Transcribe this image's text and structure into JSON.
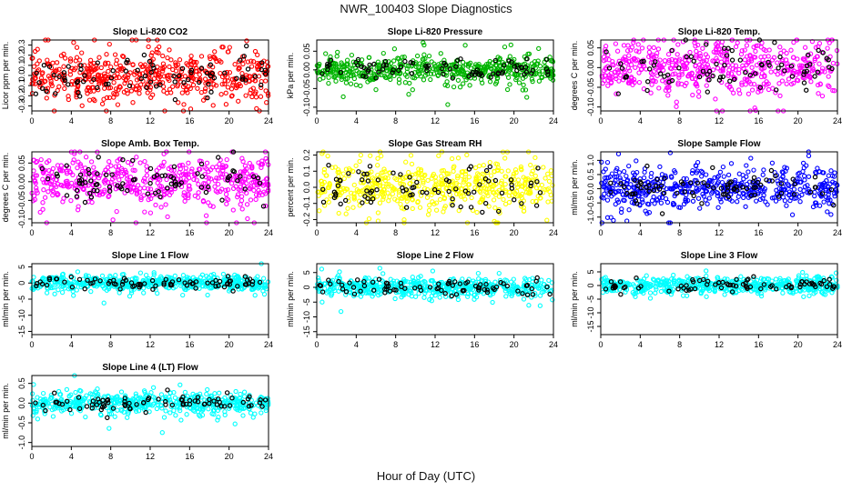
{
  "title": "NWR_100403  Slope Diagnostics",
  "xlabel": "Hour of Day (UTC)",
  "colors": {
    "background": "#ffffff",
    "axis": "#000000",
    "highlight_points": "#000000"
  },
  "chart_data": [
    {
      "type": "scatter",
      "title": "Slope Li-820 CO2",
      "ylabel": "Licor ppm per min.",
      "color": "#ff0000",
      "xlim": [
        0,
        24
      ],
      "xticks": [
        0,
        4,
        8,
        12,
        16,
        20,
        24
      ],
      "ylim": [
        -0.35,
        0.35
      ],
      "yticks": [
        -0.3,
        -0.2,
        -0.1,
        0.0,
        0.1,
        0.2,
        0.3
      ],
      "ytick_labels": [
        "-0.3",
        "-0.2",
        "-0.1",
        "0.0",
        "0.1",
        "0.2",
        "0.3"
      ],
      "spread": 0.13,
      "n_points": 520,
      "n_black": 80,
      "seed": 11
    },
    {
      "type": "scatter",
      "title": "Slope Li-820 Pressure",
      "ylabel": "kPa per min.",
      "color": "#00b400",
      "xlim": [
        0,
        24
      ],
      "xticks": [
        0,
        4,
        8,
        12,
        16,
        20,
        24
      ],
      "ylim": [
        -0.11,
        0.08
      ],
      "yticks": [
        -0.1,
        -0.05,
        0.0,
        0.05
      ],
      "ytick_labels": [
        "-0.10",
        "-0.05",
        "0.00",
        "0.05"
      ],
      "spread": 0.018,
      "n_points": 520,
      "n_black": 80,
      "seed": 23
    },
    {
      "type": "scatter",
      "title": "Slope Li-820 Temp.",
      "ylabel": "degrees C per min.",
      "color": "#ff00ff",
      "xlim": [
        0,
        24
      ],
      "xticks": [
        0,
        4,
        8,
        12,
        16,
        20,
        24
      ],
      "ylim": [
        -0.11,
        0.07
      ],
      "yticks": [
        -0.1,
        -0.05,
        0.0,
        0.05
      ],
      "ytick_labels": [
        "-0.10",
        "-0.05",
        "0.00",
        "0.05"
      ],
      "spread": 0.035,
      "n_points": 520,
      "n_black": 80,
      "seed": 37
    },
    {
      "type": "scatter",
      "title": "Slope Amb. Box Temp.",
      "ylabel": "degrees C per min.",
      "color": "#ff00ff",
      "xlim": [
        0,
        24
      ],
      "xticks": [
        0,
        4,
        8,
        12,
        16,
        20,
        24
      ],
      "ylim": [
        -0.11,
        0.08
      ],
      "yticks": [
        -0.1,
        -0.05,
        0.0,
        0.05
      ],
      "ytick_labels": [
        "-0.10",
        "-0.05",
        "0.00",
        "0.05"
      ],
      "spread": 0.035,
      "n_points": 520,
      "n_black": 80,
      "seed": 41
    },
    {
      "type": "scatter",
      "title": "Slope Gas Stream RH",
      "ylabel": "percent per min.",
      "color": "#ffff00",
      "xlim": [
        0,
        24
      ],
      "xticks": [
        0,
        4,
        8,
        12,
        16,
        20,
        24
      ],
      "ylim": [
        -0.22,
        0.22
      ],
      "yticks": [
        -0.2,
        -0.1,
        0.0,
        0.1,
        0.2
      ],
      "ytick_labels": [
        "-0.2",
        "-0.1",
        "0.0",
        "0.1",
        "0.2"
      ],
      "spread": 0.08,
      "n_points": 520,
      "n_black": 80,
      "seed": 53
    },
    {
      "type": "scatter",
      "title": "Slope Sample Flow",
      "ylabel": "ml/min per min.",
      "color": "#0000ff",
      "xlim": [
        0,
        24
      ],
      "xticks": [
        0,
        4,
        8,
        12,
        16,
        20,
        24
      ],
      "ylim": [
        -1.2,
        1.3
      ],
      "yticks": [
        -1.0,
        -0.5,
        0.0,
        0.5,
        1.0
      ],
      "ytick_labels": [
        "-1.0",
        "-0.5",
        "0.0",
        "0.5",
        "1.0"
      ],
      "spread": 0.35,
      "n_points": 520,
      "n_black": 80,
      "seed": 67
    },
    {
      "type": "scatter",
      "title": "Slope Line 1 Flow",
      "ylabel": "ml/min per min.",
      "color": "#00ffff",
      "xlim": [
        0,
        24
      ],
      "xticks": [
        0,
        4,
        8,
        12,
        16,
        20,
        24
      ],
      "ylim": [
        -16,
        6
      ],
      "yticks": [
        -15,
        -10,
        -5,
        0,
        5
      ],
      "ytick_labels": [
        "-15",
        "-10",
        "-5",
        "0",
        "5"
      ],
      "spread": 1.2,
      "n_points": 520,
      "n_black": 80,
      "seed": 71
    },
    {
      "type": "scatter",
      "title": "Slope Line 2 Flow",
      "ylabel": "ml/min per min.",
      "color": "#00ffff",
      "xlim": [
        0,
        24
      ],
      "xticks": [
        0,
        4,
        8,
        12,
        16,
        20,
        24
      ],
      "ylim": [
        -16,
        8
      ],
      "yticks": [
        -15,
        -10,
        -5,
        0,
        5
      ],
      "ytick_labels": [
        "-15",
        "-10",
        "-5",
        "0",
        "5"
      ],
      "spread": 1.6,
      "n_points": 520,
      "n_black": 80,
      "seed": 83
    },
    {
      "type": "scatter",
      "title": "Slope Line 3 Flow",
      "ylabel": "ml/min per min.",
      "color": "#00ffff",
      "xlim": [
        0,
        24
      ],
      "xticks": [
        0,
        4,
        8,
        12,
        16,
        20,
        24
      ],
      "ylim": [
        -18,
        8
      ],
      "yticks": [
        -15,
        -10,
        -5,
        0,
        5
      ],
      "ytick_labels": [
        "-15",
        "-10",
        "-5",
        "0",
        "5"
      ],
      "spread": 1.6,
      "n_points": 520,
      "n_black": 80,
      "seed": 97
    },
    {
      "type": "scatter",
      "title": "Slope Line 4 (LT) Flow",
      "ylabel": "ml/min per min.",
      "color": "#00ffff",
      "xlim": [
        0,
        24
      ],
      "xticks": [
        0,
        4,
        8,
        12,
        16,
        20,
        24
      ],
      "ylim": [
        -1.1,
        0.7
      ],
      "yticks": [
        -1.0,
        -0.5,
        0.0,
        0.5
      ],
      "ytick_labels": [
        "-1.0",
        "-0.5",
        "0.0",
        "0.5"
      ],
      "spread": 0.14,
      "n_points": 520,
      "n_black": 80,
      "seed": 101
    }
  ]
}
